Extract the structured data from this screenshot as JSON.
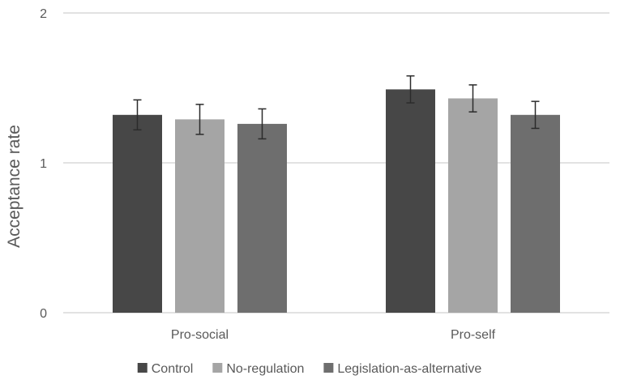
{
  "chart_data": {
    "type": "bar",
    "title": "",
    "xlabel": "",
    "ylabel": "Acceptance rate",
    "ylim": [
      0,
      2
    ],
    "yticks": [
      0,
      1,
      2
    ],
    "grid": true,
    "legend_position": "bottom",
    "categories": [
      "Pro-social",
      "Pro-self"
    ],
    "series": [
      {
        "name": "Control",
        "color": "#474747",
        "values": [
          1.32,
          1.49
        ],
        "errors": [
          0.1,
          0.09
        ]
      },
      {
        "name": "No-regulation",
        "color": "#a5a5a5",
        "values": [
          1.29,
          1.43
        ],
        "errors": [
          0.1,
          0.09
        ]
      },
      {
        "name": "Legislation-as-alternative",
        "color": "#6e6e6e",
        "values": [
          1.26,
          1.32
        ],
        "errors": [
          0.1,
          0.09
        ]
      }
    ]
  }
}
